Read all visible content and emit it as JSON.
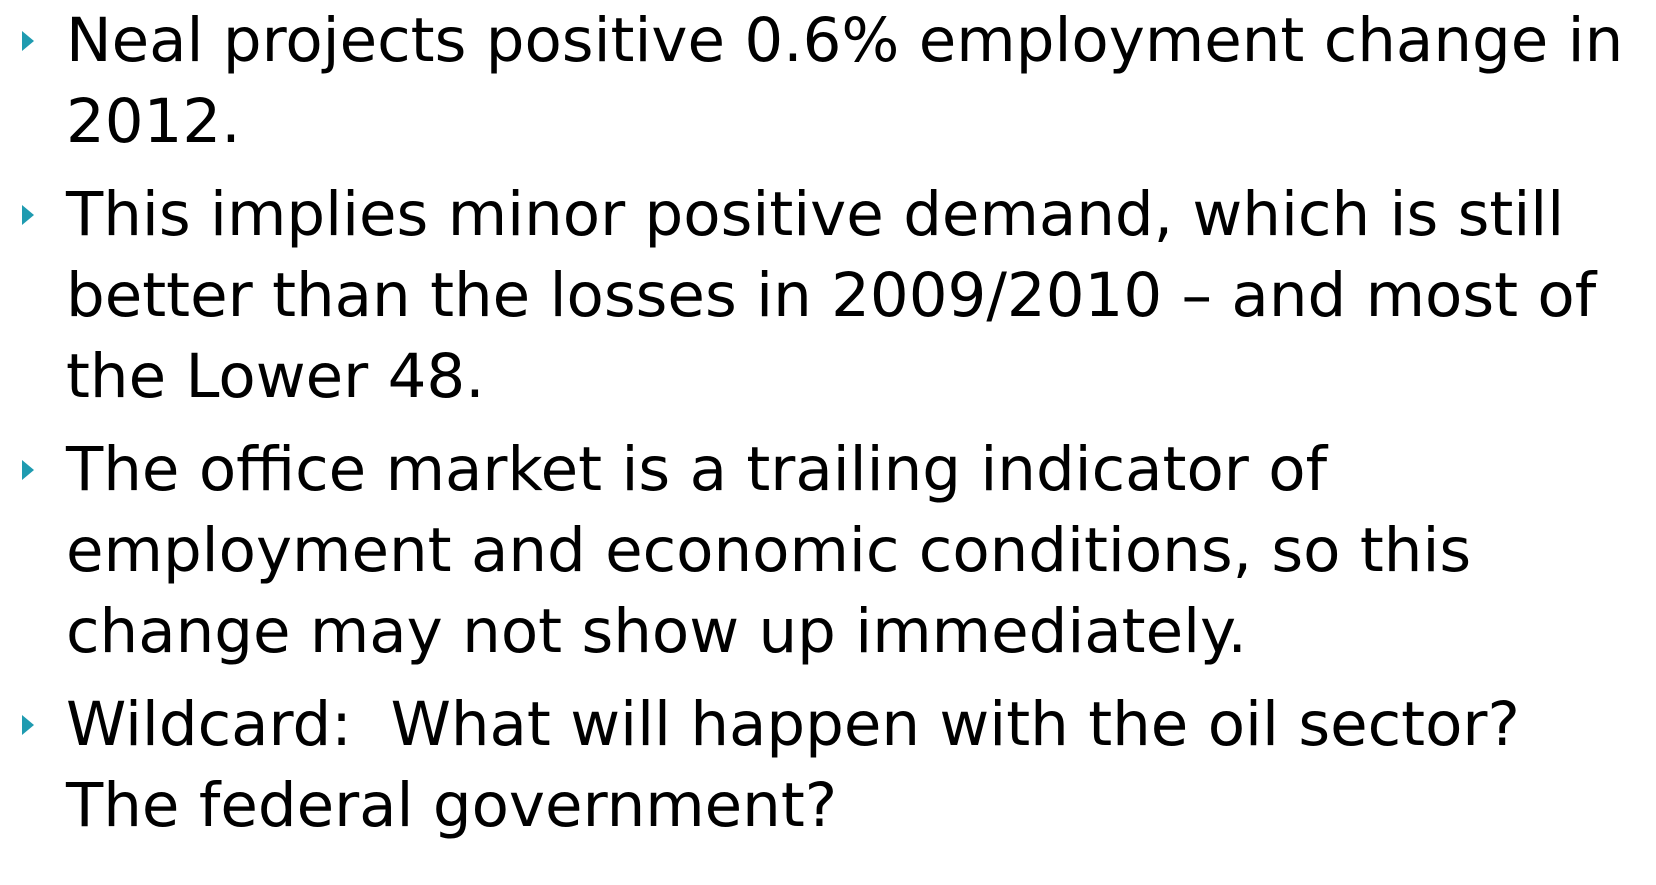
{
  "bullets": [
    "Neal projects positive 0.6% employment change in 2012.",
    "This implies minor positive demand, which is still better than the losses in 2009/2010 – and most of the Lower 48.",
    "The office market is a trailing indicator of employment and economic conditions, so this change may not show up immediately.",
    "Wildcard:  What will happen with the oil sector?  The federal government?"
  ]
}
